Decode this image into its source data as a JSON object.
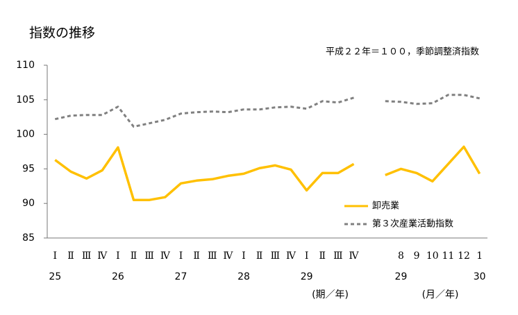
{
  "chart_data": {
    "type": "line",
    "title": "指数の推移",
    "subtitle": "平成２２年＝１００，季節調整済指数",
    "categories": [
      "Ⅰ",
      "Ⅱ",
      "Ⅲ",
      "Ⅳ",
      "Ⅰ",
      "Ⅱ",
      "Ⅲ",
      "Ⅳ",
      "Ⅰ",
      "Ⅱ",
      "Ⅲ",
      "Ⅳ",
      "Ⅰ",
      "Ⅱ",
      "Ⅲ",
      "Ⅳ",
      "Ⅰ",
      "Ⅱ",
      "Ⅲ",
      "Ⅳ",
      null,
      null,
      "8",
      "9",
      "10",
      "11",
      "12",
      "1"
    ],
    "category_years": [
      "25",
      null,
      null,
      null,
      "26",
      null,
      null,
      null,
      "27",
      null,
      null,
      null,
      "28",
      null,
      null,
      null,
      "29",
      null,
      null,
      null,
      null,
      null,
      "29",
      null,
      null,
      null,
      null,
      "30"
    ],
    "x_axis_labels": [
      "(期／年)",
      "(月／年)"
    ],
    "series": [
      {
        "name": "卸売業",
        "color": "#ffc000",
        "style": "solid",
        "values": [
          96.3,
          94.6,
          93.6,
          94.8,
          98.1,
          90.5,
          90.5,
          90.9,
          92.9,
          93.3,
          93.5,
          94.0,
          94.3,
          95.1,
          95.5,
          94.9,
          91.9,
          94.4,
          94.4,
          95.7,
          null,
          94.1,
          95.0,
          94.4,
          93.2,
          95.7,
          98.2,
          94.3
        ]
      },
      {
        "name": "第３次産業活動指数",
        "color": "#808080",
        "style": "dashed",
        "values": [
          102.2,
          102.7,
          102.8,
          102.8,
          104.0,
          101.1,
          101.6,
          102.1,
          103.0,
          103.2,
          103.3,
          103.2,
          103.6,
          103.6,
          103.9,
          104.0,
          103.7,
          104.8,
          104.6,
          105.3,
          null,
          104.8,
          104.7,
          104.4,
          104.5,
          105.7,
          105.7,
          105.2
        ]
      }
    ],
    "ylim": [
      85,
      110
    ],
    "yticks": [
      85,
      90,
      95,
      100,
      105,
      110
    ],
    "grid": false
  }
}
